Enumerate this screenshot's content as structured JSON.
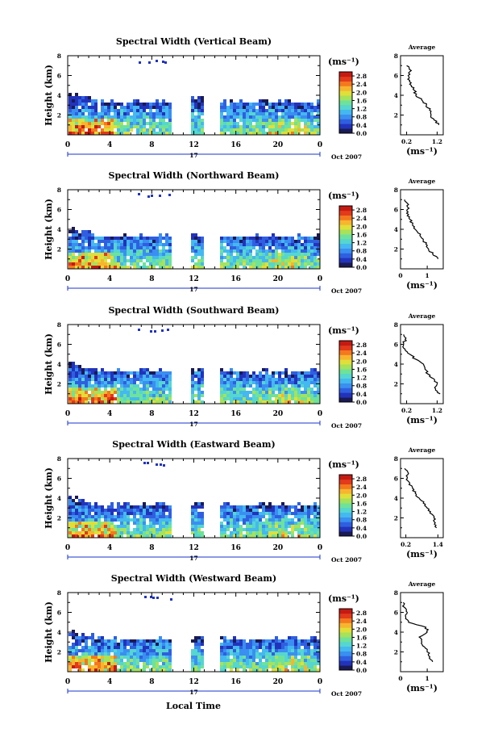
{
  "figure": {
    "colorbar_unit": "(ms⁻¹)",
    "avg_unit": "(ms⁻¹)",
    "avg_title": "Average",
    "date_day": "17",
    "date_text": "Oct 2007",
    "time_label": "Local Time",
    "height_label": "Height (km)"
  },
  "colors": {
    "scale": [
      "#1a1a55",
      "#2233bb",
      "#2f5fe0",
      "#3a8ff0",
      "#44b8f0",
      "#55d6d0",
      "#6ee29a",
      "#a6e25a",
      "#e0df3a",
      "#f7b52e",
      "#f4781e",
      "#e23a1a",
      "#c51a12"
    ]
  },
  "chart_data": [
    {
      "type": "heatmap",
      "title": "Spectral Width (Vertical Beam)",
      "xlabel": "",
      "ylabel": "Height (km)",
      "xlim": [
        0,
        24
      ],
      "ylim": [
        0,
        8
      ],
      "x_ticks": [
        "0",
        "4",
        "8",
        "12",
        "16",
        "20",
        "0"
      ],
      "y_ticks": [
        "2",
        "4",
        "6",
        "8"
      ],
      "colorbar_ticks": [
        "0.0",
        "0.4",
        "0.8",
        "1.2",
        "1.6",
        "2.0",
        "2.4",
        "2.8"
      ],
      "colorbar_range": [
        0,
        3.0
      ],
      "data_gaps_hours": [
        [
          9.7,
          11.7
        ],
        [
          12.7,
          14.2
        ]
      ],
      "avg_xticks": [
        "0.2",
        "1.2"
      ],
      "avg_xlim": [
        0,
        1.4
      ],
      "average_profile": {
        "height_km": [
          1.0,
          1.5,
          2.0,
          2.5,
          3.0,
          3.5,
          4.0,
          4.5,
          5.0,
          5.5,
          6.0,
          6.5,
          7.0
        ],
        "width_ms": [
          1.25,
          1.1,
          1.0,
          0.95,
          0.85,
          0.7,
          0.5,
          0.45,
          0.35,
          0.3,
          0.25,
          0.35,
          0.2
        ]
      }
    },
    {
      "type": "heatmap",
      "title": "Spectral Width (Northward Beam)",
      "xlabel": "",
      "ylabel": "Height (km)",
      "xlim": [
        0,
        24
      ],
      "ylim": [
        0,
        8
      ],
      "x_ticks": [
        "0",
        "4",
        "8",
        "12",
        "16",
        "20",
        "0"
      ],
      "y_ticks": [
        "2",
        "4",
        "6",
        "8"
      ],
      "colorbar_ticks": [
        "0.0",
        "0.4",
        "0.8",
        "1.2",
        "1.6",
        "2.0",
        "2.4",
        "2.8"
      ],
      "colorbar_range": [
        0,
        3.0
      ],
      "data_gaps_hours": [
        [
          9.7,
          11.7
        ],
        [
          12.7,
          14.2
        ]
      ],
      "avg_xticks": [
        "0",
        "1"
      ],
      "avg_xlim": [
        0,
        1.6
      ],
      "average_profile": {
        "height_km": [
          1.0,
          1.5,
          2.0,
          2.5,
          3.0,
          3.5,
          4.0,
          4.5,
          5.0,
          5.5,
          6.0,
          6.5,
          7.0
        ],
        "width_ms": [
          1.4,
          1.2,
          1.05,
          0.95,
          0.85,
          0.75,
          0.55,
          0.45,
          0.35,
          0.3,
          0.25,
          0.3,
          0.15
        ]
      }
    },
    {
      "type": "heatmap",
      "title": "Spectral Width (Southward Beam)",
      "xlabel": "",
      "ylabel": "Height (km)",
      "xlim": [
        0,
        24
      ],
      "ylim": [
        0,
        8
      ],
      "x_ticks": [
        "0",
        "4",
        "8",
        "12",
        "16",
        "20",
        "0"
      ],
      "y_ticks": [
        "2",
        "4",
        "6",
        "8"
      ],
      "colorbar_ticks": [
        "0.0",
        "0.4",
        "0.8",
        "1.2",
        "1.6",
        "2.0",
        "2.4",
        "2.8"
      ],
      "colorbar_range": [
        0,
        3.0
      ],
      "data_gaps_hours": [
        [
          9.7,
          11.7
        ],
        [
          12.7,
          14.2
        ]
      ],
      "avg_xticks": [
        "0.2",
        "1.2"
      ],
      "avg_xlim": [
        0,
        1.4
      ],
      "average_profile": {
        "height_km": [
          1.0,
          1.5,
          2.0,
          2.5,
          3.0,
          3.5,
          4.0,
          4.5,
          5.0,
          5.5,
          6.0,
          6.5,
          7.0
        ],
        "width_ms": [
          1.3,
          1.15,
          1.2,
          1.1,
          0.9,
          0.8,
          0.75,
          0.5,
          0.3,
          0.15,
          0.1,
          0.15,
          0.1
        ]
      }
    },
    {
      "type": "heatmap",
      "title": "Spectral Width (Eastward Beam)",
      "xlabel": "",
      "ylabel": "Height (km)",
      "xlim": [
        0,
        24
      ],
      "ylim": [
        0,
        8
      ],
      "x_ticks": [
        "0",
        "4",
        "8",
        "12",
        "16",
        "20",
        "0"
      ],
      "y_ticks": [
        "2",
        "4",
        "6",
        "8"
      ],
      "colorbar_ticks": [
        "0.0",
        "0.4",
        "0.8",
        "1.2",
        "1.6",
        "2.0",
        "2.4",
        "2.8"
      ],
      "colorbar_range": [
        0,
        3.0
      ],
      "data_gaps_hours": [
        [
          9.7,
          11.7
        ],
        [
          12.7,
          14.2
        ]
      ],
      "avg_xticks": [
        "0.2",
        "1.4"
      ],
      "avg_xlim": [
        0,
        1.6
      ],
      "average_profile": {
        "height_km": [
          1.0,
          1.5,
          2.0,
          2.5,
          3.0,
          3.5,
          4.0,
          4.5,
          5.0,
          5.5,
          6.0,
          6.5,
          7.0
        ],
        "width_ms": [
          1.35,
          1.3,
          1.25,
          1.1,
          1.0,
          0.85,
          0.7,
          0.55,
          0.45,
          0.35,
          0.25,
          0.3,
          0.15
        ]
      }
    },
    {
      "type": "heatmap",
      "title": "Spectral Width (Westward Beam)",
      "xlabel": "Local Time",
      "ylabel": "Height (km)",
      "xlim": [
        0,
        24
      ],
      "ylim": [
        0,
        8
      ],
      "x_ticks": [
        "0",
        "4",
        "8",
        "12",
        "16",
        "20",
        "0"
      ],
      "y_ticks": [
        "2",
        "4",
        "6",
        "8"
      ],
      "colorbar_ticks": [
        "0.0",
        "0.4",
        "0.8",
        "1.2",
        "1.6",
        "2.0",
        "2.4",
        "2.8"
      ],
      "colorbar_range": [
        0,
        3.0
      ],
      "data_gaps_hours": [
        [
          9.7,
          11.7
        ],
        [
          12.7,
          14.2
        ]
      ],
      "avg_xticks": [
        "0",
        "1"
      ],
      "avg_xlim": [
        0,
        1.6
      ],
      "average_profile": {
        "height_km": [
          1.0,
          1.5,
          2.0,
          2.5,
          3.0,
          3.5,
          4.0,
          4.5,
          5.0,
          5.5,
          6.0,
          6.5,
          7.0
        ],
        "width_ms": [
          1.2,
          1.1,
          1.0,
          0.9,
          0.8,
          0.7,
          1.0,
          0.95,
          0.3,
          0.2,
          0.25,
          0.15,
          0.1
        ]
      }
    }
  ]
}
